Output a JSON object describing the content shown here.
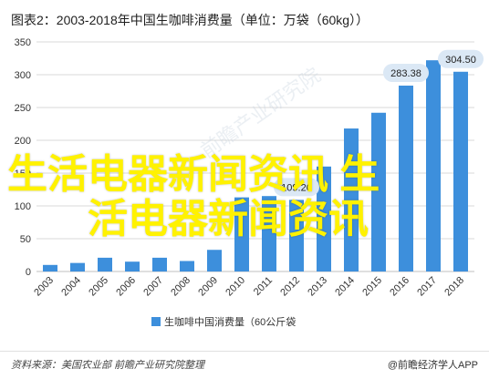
{
  "header": {
    "title": "图表2：2003-2018年中国生咖啡消费量（单位：万袋（60kg））"
  },
  "chart_data": {
    "type": "bar",
    "title": "图表2：2003-2018年中国生咖啡消费量（单位：万袋（60kg））",
    "categories": [
      "2003",
      "2004",
      "2005",
      "2006",
      "2007",
      "2008",
      "2009",
      "2010",
      "2011",
      "2012",
      "2013",
      "2014",
      "2015",
      "2016",
      "2017",
      "2018"
    ],
    "series": [
      {
        "name": "生咖啡中国消费量（60公斤袋",
        "values": [
          10,
          13,
          21,
          15,
          21,
          16,
          33,
          113,
          115,
          109.2,
          160,
          218,
          242,
          283.38,
          322,
          304.5
        ],
        "color": "#3d8fdc"
      }
    ],
    "ylim": [
      0,
      350
    ],
    "yticks": [
      0,
      50,
      100,
      150,
      200,
      250,
      300,
      350
    ],
    "grid": true,
    "legend": "bottom",
    "data_labels": [
      {
        "category": "2012",
        "text": "109.20"
      },
      {
        "category": "2016",
        "text": "283.38"
      },
      {
        "category": "2018",
        "text": "304.50"
      }
    ]
  },
  "watermark": "前瞻产业研究院",
  "overlay": {
    "line1": "生活电器新闻资讯 生",
    "line2": "活电器新闻资讯"
  },
  "footer": {
    "source": "资料来源：美国农业部 前瞻产业研究院整理",
    "brand": "@前瞻经济学人APP"
  }
}
